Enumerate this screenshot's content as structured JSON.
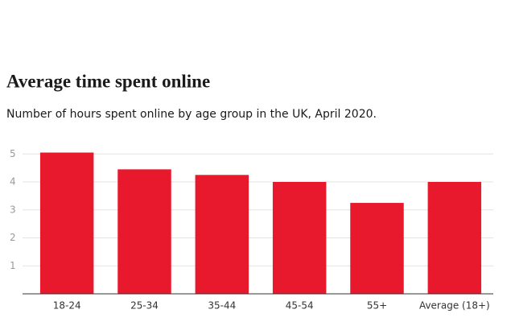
{
  "chart_data": {
    "type": "bar",
    "title": "Average time spent online",
    "subtitle": "Number of hours spent online by age group in the UK, April 2020.",
    "categories": [
      "18-24",
      "25-34",
      "35-44",
      "45-54",
      "55+",
      "Average (18+)"
    ],
    "values": [
      5.05,
      4.45,
      4.25,
      4.0,
      3.25,
      4.0
    ],
    "color": "#e8192c",
    "ylim": [
      0,
      5.2
    ],
    "yticks": [
      1,
      2,
      3,
      4,
      5
    ],
    "grid": true
  }
}
